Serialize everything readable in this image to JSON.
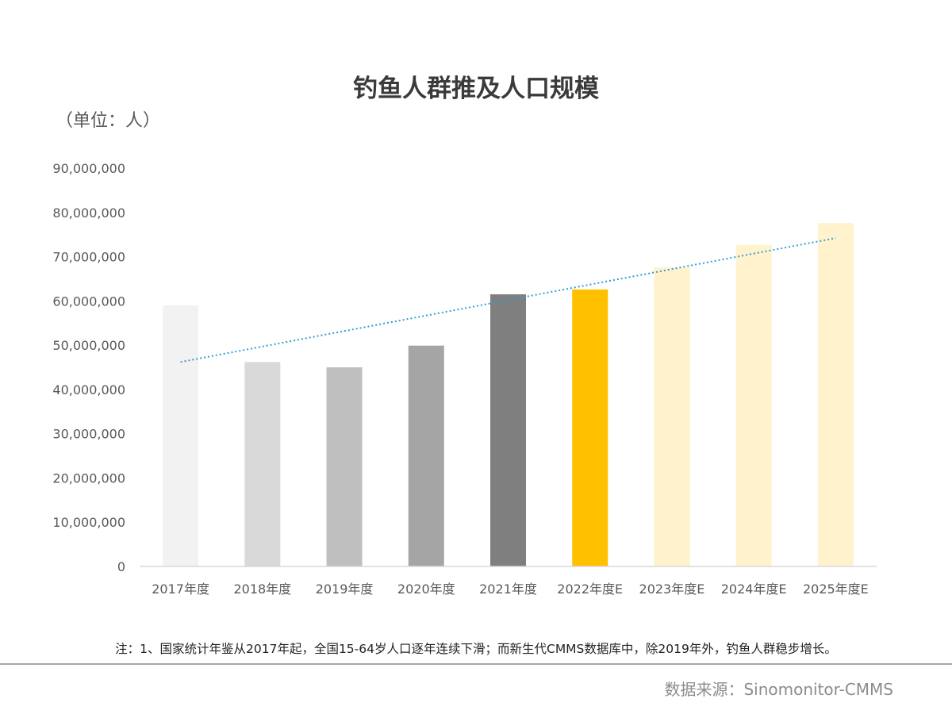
{
  "chart_data": {
    "type": "bar",
    "title": "钓鱼人群推及人口规模",
    "unit_label": "（单位：人）",
    "categories": [
      "2017年度",
      "2018年度",
      "2019年度",
      "2020年度",
      "2021年度",
      "2022年度E",
      "2023年度E",
      "2024年度E",
      "2025年度E"
    ],
    "values": [
      59000000,
      46200000,
      45000000,
      49900000,
      61500000,
      62600000,
      67600000,
      72600000,
      77600000
    ],
    "bar_colors": [
      "#f2f2f2",
      "#d9d9d9",
      "#bfbfbf",
      "#a5a5a5",
      "#7f7f7f",
      "#ffc000",
      "#fff2cc",
      "#fff2cc",
      "#fff2cc"
    ],
    "ylim": [
      0,
      90000000
    ],
    "yticks": [
      0,
      10000000,
      20000000,
      30000000,
      40000000,
      50000000,
      60000000,
      70000000,
      80000000,
      90000000
    ],
    "ytick_labels": [
      "0",
      "10,000,000",
      "20,000,000",
      "30,000,000",
      "40,000,000",
      "50,000,000",
      "60,000,000",
      "70,000,000",
      "80,000,000",
      "90,000,000"
    ],
    "trendline": {
      "start": 46200000,
      "end": 74200000,
      "color": "#2e9fd6"
    },
    "grid": false,
    "legend": "none"
  },
  "footnote": "注：1、国家统计年鉴从2017年起，全国15-64岁人口逐年连续下滑；而新生代CMMS数据库中，除2019年外，钓鱼人群稳步增长。",
  "source": "数据来源：Sinomonitor-CMMS"
}
